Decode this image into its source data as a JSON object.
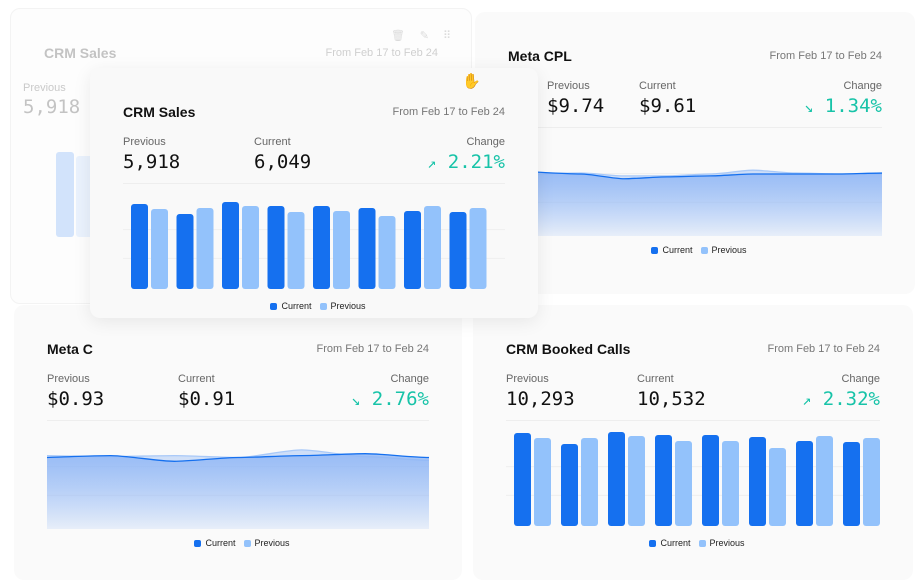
{
  "colors": {
    "current": "#1570ef",
    "previous": "#93c2fb",
    "positive": "#17c3a8"
  },
  "legend": {
    "current": "Current",
    "previous": "Previous"
  },
  "labels": {
    "previous": "Previous",
    "current": "Current",
    "change": "Change"
  },
  "ghost": {
    "title": "CRM Sales",
    "date": "From Feb 17 to Feb 24",
    "previous": "5,918",
    "toolbar": [
      "trash-icon",
      "edit-icon",
      "drag-grip-icon"
    ]
  },
  "meta_cpl": {
    "title": "Meta CPL",
    "date": "From Feb 17 to Feb 24",
    "previous": "$9.74",
    "current": "$9.61",
    "change": "1.34%",
    "trend": "down",
    "chart": {
      "type": "area",
      "current": [
        62,
        60,
        55,
        57,
        58,
        60,
        60,
        60,
        61
      ],
      "previous": [
        60,
        61,
        58,
        58,
        60,
        64,
        61,
        60,
        60
      ]
    }
  },
  "crm_sales": {
    "title": "CRM Sales",
    "date": "From Feb 17 to Feb 24",
    "previous": "5,918",
    "current": "6,049",
    "change": "2.21%",
    "trend": "up",
    "chart": {
      "type": "bar",
      "current": [
        85,
        75,
        87,
        83,
        83,
        81,
        78,
        77
      ],
      "previous": [
        80,
        81,
        83,
        77,
        78,
        73,
        83,
        81
      ]
    }
  },
  "meta_c": {
    "title": "Meta C",
    "date": "From Feb 17 to Feb 24",
    "previous": "$0.93",
    "current": "$0.91",
    "change": "2.76%",
    "trend": "down",
    "chart": {
      "type": "area",
      "current": [
        70,
        72,
        66,
        70,
        72,
        74,
        70
      ],
      "previous": [
        72,
        71,
        72,
        70,
        78,
        71,
        67
      ]
    }
  },
  "booked_calls": {
    "title": "CRM Booked Calls",
    "date": "From Feb 17 to Feb 24",
    "previous": "10,293",
    "current": "10,532",
    "change": "2.32%",
    "trend": "up",
    "chart": {
      "type": "bar",
      "current": [
        93,
        82,
        94,
        91,
        91,
        89,
        85,
        84
      ],
      "previous": [
        88,
        88,
        90,
        85,
        85,
        78,
        90,
        88
      ]
    }
  }
}
